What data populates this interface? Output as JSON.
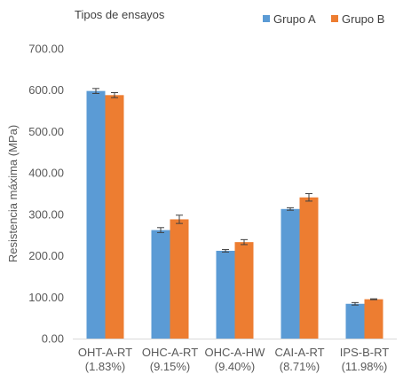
{
  "chart_data": {
    "type": "bar",
    "title": "Tipos de ensayos",
    "ylabel": "Resistencia máxima (MPa)",
    "xlabel": "",
    "ylim": [
      0,
      700
    ],
    "yticks": [
      "0.00",
      "100.00",
      "200.00",
      "300.00",
      "400.00",
      "500.00",
      "600.00",
      "700.00"
    ],
    "grid": false,
    "legend_position": "top-right",
    "categories": [
      [
        "OHT-A-RT",
        "(1.83%)"
      ],
      [
        "OHC-A-RT",
        "(9.15%)"
      ],
      [
        "OHC-A-HW",
        "(9.40%)"
      ],
      [
        "CAI-A-RT",
        "(8.71%)"
      ],
      [
        "IPS-B-RT",
        "(11.98%)"
      ]
    ],
    "series": [
      {
        "name": "Grupo A",
        "color": "#5B9BD5",
        "values": [
          598,
          262,
          212,
          313,
          84
        ],
        "errors": [
          6,
          6,
          3,
          3,
          3
        ]
      },
      {
        "name": "Grupo B",
        "color": "#ED7D31",
        "values": [
          588,
          288,
          233,
          341,
          95
        ],
        "errors": [
          6,
          10,
          6,
          9,
          1
        ]
      }
    ]
  }
}
